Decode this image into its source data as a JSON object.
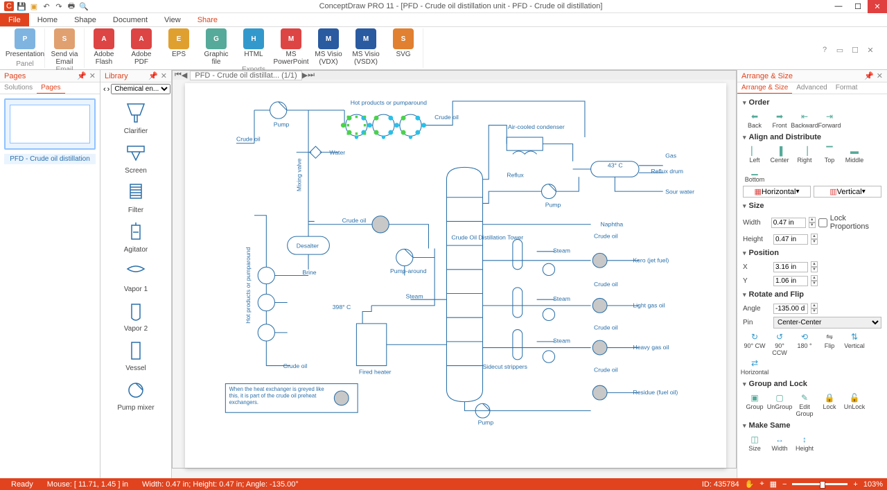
{
  "window": {
    "title": "ConceptDraw PRO 11 - [PFD - Crude oil distillation unit - PFD - Crude oil distillation]"
  },
  "menu": {
    "tabs": [
      "File",
      "Home",
      "Shape",
      "Document",
      "View",
      "Share"
    ],
    "active": "Share"
  },
  "ribbon": {
    "groups": [
      {
        "label": "Panel",
        "items": [
          {
            "label": "Presentation",
            "color": "#7fb4e0"
          }
        ]
      },
      {
        "label": "Email",
        "items": [
          {
            "label": "Send via\nEmail",
            "color": "#e0a070"
          }
        ]
      },
      {
        "label": "Exports",
        "items": [
          {
            "label": "Adobe\nFlash",
            "color": "#d44"
          },
          {
            "label": "Adobe\nPDF",
            "color": "#d44"
          },
          {
            "label": "EPS",
            "color": "#e0a030"
          },
          {
            "label": "Graphic\nfile",
            "color": "#5a9"
          },
          {
            "label": "HTML",
            "color": "#39c"
          },
          {
            "label": "MS\nPowerPoint",
            "color": "#d44"
          },
          {
            "label": "MS Visio\n(VDX)",
            "color": "#2a5aa0"
          },
          {
            "label": "MS Visio\n(VSDX)",
            "color": "#2a5aa0"
          },
          {
            "label": "SVG",
            "color": "#e08030"
          }
        ]
      }
    ]
  },
  "pages_panel": {
    "title": "Pages",
    "tabs": [
      "Solutions",
      "Pages"
    ],
    "active": "Pages",
    "thumb_label": "PFD - Crude oil distillation"
  },
  "library_panel": {
    "title": "Library",
    "selector": "Chemical en...",
    "items": [
      "Clarifier",
      "Screen",
      "Filter",
      "Agitator",
      "Vapor 1",
      "Vapor 2",
      "Vessel",
      "Pump mixer"
    ]
  },
  "canvas": {
    "tab_label": "PFD - Crude oil distillat...  (1/1)",
    "labels": {
      "pump": "Pump",
      "crude_oil": "Crude oil",
      "hot_products": "Hot products or pumparound",
      "mixing_valve": "Mixing valve",
      "water": "Water",
      "desalter": "Desalter",
      "brine": "Brine",
      "pump_around": "Pump-around",
      "temp398": "398° C",
      "fired_heater": "Fired heater",
      "note": "When the heat exchanger is greyed like this, it is part of the crude oil preheat exchangers.",
      "steam": "Steam",
      "tower": "Crude Oil\nDistillation\nTower",
      "air_cooled": "Air-cooled\ncondenser",
      "temp43": "43° C",
      "reflux": "Reflux",
      "reflux_drum": "Reflux drum",
      "gas": "Gas",
      "sour_water": "Sour water",
      "naphtha": "Naphtha",
      "kero": "Kero (jet fuel)",
      "light_gas": "Light gas oil",
      "heavy_gas": "Heavy gas oil",
      "residue": "Residue (fuel oil)",
      "sidecut": "Sidecut\nstrippers",
      "hot_products_v": "Hot products or pumparound"
    }
  },
  "arrange": {
    "title": "Arrange & Size",
    "tabs": [
      "Arrange & Size",
      "Advanced",
      "Format"
    ],
    "active": "Arrange & Size",
    "sections": {
      "order": "Order",
      "align": "Align and Distribute",
      "size": "Size",
      "position": "Position",
      "rotate": "Rotate and Flip",
      "group": "Group and Lock",
      "same": "Make Same"
    },
    "order_btns": [
      "Back",
      "Front",
      "Backward",
      "Forward"
    ],
    "align_btns": [
      "Left",
      "Center",
      "Right",
      "Top",
      "Middle",
      "Bottom"
    ],
    "dist": [
      "Horizontal",
      "Vertical"
    ],
    "size": {
      "width": "0.47 in",
      "height": "0.47 in",
      "lock": "Lock Proportions"
    },
    "position": {
      "x": "3.16 in",
      "y": "1.06 in"
    },
    "rotate": {
      "angle": "-135.00 d",
      "pin": "Center-Center",
      "btns": [
        "90° CW",
        "90° CCW",
        "180 °",
        "Flip",
        "Vertical",
        "Horizontal"
      ]
    },
    "group_btns": [
      "Group",
      "UnGroup",
      "Edit\nGroup",
      "Lock",
      "UnLock"
    ],
    "same_btns": [
      "Size",
      "Width",
      "Height"
    ]
  },
  "status": {
    "ready": "Ready",
    "mouse": "Mouse: [ 11.71, 1.45 ] in",
    "dims": "Width: 0.47 in;  Height: 0.47 in;  Angle: -135.00°",
    "id": "ID: 435784",
    "zoom": "103%"
  }
}
